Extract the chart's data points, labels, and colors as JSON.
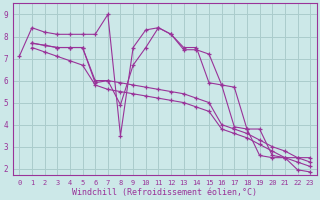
{
  "background_color": "#cce8e8",
  "grid_color": "#aacccc",
  "line_color": "#993399",
  "xlabel": "Windchill (Refroidissement éolien,°C)",
  "xlabel_color": "#993399",
  "xlim": [
    -0.5,
    23.5
  ],
  "ylim": [
    1.7,
    9.5
  ],
  "yticks": [
    2,
    3,
    4,
    5,
    6,
    7,
    8,
    9
  ],
  "xticks": [
    0,
    1,
    2,
    3,
    4,
    5,
    6,
    7,
    8,
    9,
    10,
    11,
    12,
    13,
    14,
    15,
    16,
    17,
    18,
    19,
    20,
    21,
    22,
    23
  ],
  "series": [
    {
      "x": [
        0,
        1,
        2,
        3,
        4,
        5,
        6,
        7,
        8,
        9,
        10,
        11,
        12,
        13,
        14,
        15,
        16,
        17,
        18,
        19,
        20,
        21,
        22,
        23
      ],
      "y": [
        7.1,
        8.4,
        8.2,
        8.1,
        8.1,
        8.1,
        8.1,
        9.0,
        3.5,
        7.5,
        8.3,
        8.4,
        8.1,
        7.4,
        7.4,
        7.2,
        5.8,
        3.9,
        3.8,
        3.8,
        2.6,
        2.5,
        2.5,
        2.5
      ]
    },
    {
      "x": [
        1,
        2,
        3,
        4,
        5,
        6,
        7,
        8,
        9,
        10,
        11,
        12,
        13,
        14,
        15,
        16,
        17,
        18,
        19,
        20,
        21,
        22,
        23
      ],
      "y": [
        7.7,
        7.6,
        7.5,
        7.5,
        7.5,
        6.0,
        6.0,
        5.9,
        5.8,
        5.7,
        5.6,
        5.5,
        5.4,
        5.2,
        5.0,
        4.0,
        3.8,
        3.6,
        3.3,
        3.0,
        2.8,
        2.5,
        2.3
      ]
    },
    {
      "x": [
        1,
        2,
        3,
        4,
        5,
        6,
        7,
        8,
        9,
        10,
        11,
        12,
        13,
        14,
        15,
        16,
        17,
        18,
        19,
        20,
        21,
        22,
        23
      ],
      "y": [
        7.5,
        7.3,
        7.1,
        6.9,
        6.7,
        5.8,
        5.6,
        5.5,
        5.4,
        5.3,
        5.2,
        5.1,
        5.0,
        4.8,
        4.6,
        3.8,
        3.6,
        3.4,
        3.1,
        2.8,
        2.5,
        2.3,
        2.1
      ]
    },
    {
      "x": [
        1,
        2,
        3,
        4,
        5,
        6,
        7,
        8,
        9,
        10,
        11,
        12,
        13,
        14,
        15,
        16,
        17,
        18,
        19,
        20,
        21,
        22,
        23
      ],
      "y": [
        7.7,
        7.6,
        7.5,
        7.5,
        7.5,
        5.9,
        6.0,
        4.9,
        6.7,
        7.5,
        8.4,
        8.1,
        7.5,
        7.5,
        5.9,
        5.8,
        5.7,
        3.8,
        2.6,
        2.5,
        2.5,
        1.95,
        1.85
      ]
    }
  ]
}
